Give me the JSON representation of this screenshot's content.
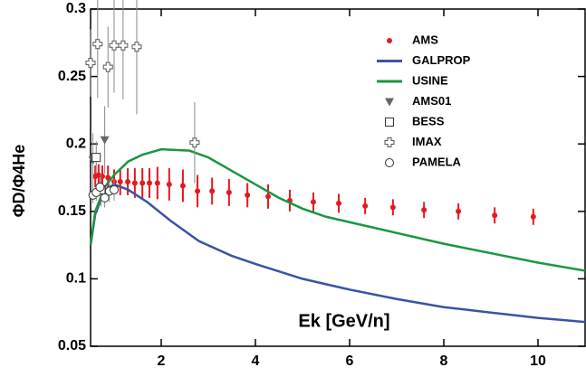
{
  "chart_data": {
    "type": "scatter",
    "x_label": "Ek [GeV/n]",
    "y_label": "ΦD/Φ4He",
    "xlim": [
      0.5,
      11
    ],
    "ylim": [
      0.05,
      0.3
    ],
    "xticks": [
      2,
      4,
      6,
      8,
      10
    ],
    "yticks": [
      0.05,
      0.1,
      0.15,
      0.2,
      0.25,
      0.3
    ],
    "series": [
      {
        "name": "AMS",
        "color": "#e41a1c",
        "marker": "dot",
        "x": [
          0.6,
          0.67,
          0.75,
          0.87,
          1.0,
          1.13,
          1.29,
          1.44,
          1.6,
          1.75,
          1.92,
          2.17,
          2.46,
          2.77,
          3.08,
          3.44,
          3.83,
          4.27,
          4.73,
          5.23,
          5.77,
          6.33,
          6.92,
          7.58,
          8.31,
          9.08,
          9.9
        ],
        "values": [
          0.176,
          0.177,
          0.176,
          0.175,
          0.172,
          0.172,
          0.172,
          0.171,
          0.171,
          0.171,
          0.171,
          0.17,
          0.169,
          0.165,
          0.165,
          0.164,
          0.162,
          0.161,
          0.158,
          0.157,
          0.156,
          0.154,
          0.153,
          0.151,
          0.15,
          0.147,
          0.146
        ],
        "errors": [
          0.008,
          0.008,
          0.008,
          0.009,
          0.009,
          0.01,
          0.01,
          0.011,
          0.011,
          0.011,
          0.012,
          0.012,
          0.012,
          0.012,
          0.01,
          0.01,
          0.009,
          0.009,
          0.008,
          0.007,
          0.007,
          0.006,
          0.006,
          0.006,
          0.006,
          0.006,
          0.006
        ]
      },
      {
        "name": "GALPROP",
        "color": "#3a53a4",
        "marker": "line",
        "x": [
          0.5,
          0.6,
          0.8,
          1.0,
          1.3,
          1.7,
          2.2,
          2.8,
          3.5,
          4.0,
          5.0,
          6.0,
          7.0,
          8.0,
          9.0,
          10.0,
          11.0
        ],
        "values": [
          0.125,
          0.148,
          0.166,
          0.17,
          0.166,
          0.157,
          0.143,
          0.128,
          0.117,
          0.111,
          0.1,
          0.092,
          0.085,
          0.079,
          0.075,
          0.071,
          0.068
        ]
      },
      {
        "name": "USINE",
        "color": "#1a9641",
        "marker": "line",
        "x": [
          0.5,
          0.6,
          0.8,
          1.0,
          1.3,
          1.6,
          2.0,
          2.6,
          3.0,
          3.5,
          4.0,
          4.5,
          5.0,
          5.5,
          6.0,
          7.0,
          8.0,
          9.0,
          10.0,
          11.0
        ],
        "values": [
          0.125,
          0.15,
          0.168,
          0.177,
          0.187,
          0.192,
          0.196,
          0.195,
          0.19,
          0.18,
          0.17,
          0.16,
          0.152,
          0.146,
          0.142,
          0.134,
          0.126,
          0.119,
          0.112,
          0.106
        ]
      },
      {
        "name": "AMS01",
        "color": "#666666",
        "marker": "triangle",
        "x": [
          0.55,
          0.8
        ],
        "values": [
          0.188,
          0.203
        ],
        "errors": [
          0.02,
          0.025
        ]
      },
      {
        "name": "BESS",
        "color": "#333333",
        "marker": "square",
        "x": [
          0.62,
          0.72
        ],
        "values": [
          0.19,
          0.166
        ],
        "errors": [
          0.012,
          0.012
        ]
      },
      {
        "name": "IMAX",
        "color": "#555555",
        "marker": "cross",
        "x": [
          0.5,
          0.65,
          0.87,
          1.0,
          1.19,
          1.48,
          2.71
        ],
        "values": [
          0.26,
          0.274,
          0.257,
          0.273,
          0.273,
          0.272,
          0.201
        ],
        "errors": [
          0.025,
          0.04,
          0.03,
          0.035,
          0.04,
          0.05,
          0.03
        ]
      },
      {
        "name": "PAMELA",
        "color": "#333333",
        "marker": "circle",
        "x": [
          0.55,
          0.62,
          0.7,
          0.8,
          0.9,
          1.0
        ],
        "values": [
          0.162,
          0.164,
          0.168,
          0.16,
          0.165,
          0.166
        ],
        "errors": [
          0.006,
          0.006,
          0.007,
          0.007,
          0.008,
          0.008
        ]
      }
    ]
  }
}
